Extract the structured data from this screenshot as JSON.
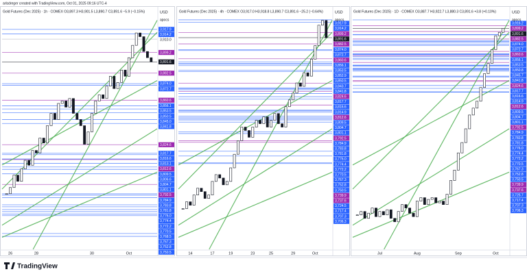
{
  "credit": "arlsdreger created with TradingView.com, Oct 01, 2025 09:16 UTC-4",
  "brand": "TradingView",
  "chart_data": [
    {
      "type": "candlestick",
      "title": "Gold Futures (Dec 2025) · 1h · COMEX  O3,897.3 H3,901.5 L3,890.7 C3,891.6 −5.9 (−0.15%)",
      "currency": "USD",
      "indicator": "apocs",
      "categories": [
        null,
        "26",
        null,
        null,
        null,
        null,
        null,
        null,
        "28",
        null,
        null,
        null,
        null,
        null,
        null,
        null,
        null,
        null,
        null,
        null,
        null,
        null,
        null,
        "30",
        null,
        null,
        null,
        null,
        null,
        null,
        null,
        null,
        null,
        "Oct",
        null,
        null,
        null,
        null,
        null,
        null
      ],
      "values": [
        3785,
        3790,
        3800,
        3795,
        3805,
        3812,
        3808,
        3820,
        3818,
        3830,
        3826,
        3840,
        3850,
        3845,
        3858,
        3860,
        3855,
        3862,
        3850,
        3845,
        3840,
        3825,
        3835,
        3850,
        3860,
        3865,
        3862,
        3872,
        3880,
        3870,
        3875,
        3885,
        3880,
        3895,
        3905,
        3915,
        3912,
        3900,
        3895,
        3891.6
      ],
      "up_color": "#089981",
      "down_color": "#131722",
      "ylim": [
        3740,
        3935
      ],
      "levels": [
        {
          "value": 3917.9,
          "label": "3,917.9",
          "color": "#2962ff"
        },
        {
          "value": 3914.2,
          "label": "3,914.2",
          "color": "#2962ff"
        },
        {
          "value": 3910.0,
          "label": "3,910.0",
          "color": "#ffffff"
        },
        {
          "value": 3899.2,
          "label": "3,899.2",
          "color": "#9c27b0"
        },
        {
          "value": 3891.6,
          "label": "3,891.6",
          "color": "#131722"
        },
        {
          "value": 3882.5,
          "label": "3,882.5",
          "color": "#9c27b0"
        },
        {
          "value": 3874.0,
          "label": "3,874.0",
          "color": "#2962ff"
        },
        {
          "value": 3872.7,
          "label": "3,872.7",
          "color": "#2962ff"
        },
        {
          "value": 3860.6,
          "label": "3,860.6",
          "color": "#9c27b0"
        },
        {
          "value": 3856.1,
          "label": "3,856.1",
          "color": "#2962ff"
        },
        {
          "value": 3853.5,
          "label": "3,853.5",
          "color": "#2962ff"
        },
        {
          "value": 3850.5,
          "label": "3,850.5",
          "color": "#2962ff"
        },
        {
          "value": 3845.0,
          "label": "3,845.0",
          "color": "#2962ff"
        },
        {
          "value": 3841.8,
          "label": "3,841.8",
          "color": "#2962ff"
        },
        {
          "value": 3824.6,
          "label": "3,824.6",
          "color": "#9c27b0"
        },
        {
          "value": 3817.7,
          "label": "3,817.7",
          "color": "#2962ff"
        },
        {
          "value": 3816.6,
          "label": "3,816.6",
          "color": "#2962ff"
        },
        {
          "value": 3813.1,
          "label": "3,813.1",
          "color": "#2962ff"
        },
        {
          "value": 3812.6,
          "label": "3,812.6",
          "color": "#9c27b0"
        },
        {
          "value": 3809.5,
          "label": "3,809.5",
          "color": "#2962ff"
        },
        {
          "value": 3806.6,
          "label": "3,806.6",
          "color": "#2962ff"
        },
        {
          "value": 3804.7,
          "label": "3,804.7",
          "color": "#2962ff"
        },
        {
          "value": 3801.1,
          "label": "3,801.1",
          "color": "#2962ff"
        },
        {
          "value": 3792.5,
          "label": "3,792.5",
          "color": "#9c27b0"
        },
        {
          "value": 3784.9,
          "label": "3,784.9",
          "color": "#2962ff"
        },
        {
          "value": 3783.8,
          "label": "3,783.8",
          "color": "#2962ff"
        },
        {
          "value": 3781.8,
          "label": "3,781.8",
          "color": "#2962ff"
        },
        {
          "value": 3776.0,
          "label": "3,776.0",
          "color": "#2962ff"
        },
        {
          "value": 3774.4,
          "label": "3,774.4",
          "color": "#2962ff"
        },
        {
          "value": 3772.2,
          "label": "3,772.2",
          "color": "#2962ff"
        },
        {
          "value": 3770.5,
          "label": "3,770.5",
          "color": "#2962ff"
        },
        {
          "value": 3768.5,
          "label": "3,768.5",
          "color": "#2962ff"
        },
        {
          "value": 3767.3,
          "label": "3,767.3",
          "color": "#2962ff"
        },
        {
          "value": 3752.8,
          "label": "3,752.8",
          "color": "#2962ff"
        },
        {
          "value": 3750.5,
          "label": "3,750.5",
          "color": "#2962ff"
        }
      ]
    },
    {
      "type": "candlestick",
      "title": "Gold Futures (Dec 2025) · 4h · COMEX  O3,917.0 H3,918.8 L3,890.7 C3,891.6 −25.2 (−0.64%)",
      "currency": "USD",
      "indicator": "apocs",
      "categories": [
        null,
        null,
        "14",
        null,
        null,
        null,
        null,
        null,
        "17",
        null,
        null,
        null,
        null,
        "19",
        null,
        null,
        null,
        null,
        null,
        "23",
        null,
        null,
        null,
        null,
        "25",
        null,
        null,
        null,
        null,
        null,
        "29",
        null,
        null,
        null,
        null,
        null,
        "Oct",
        null,
        null,
        null
      ],
      "values": [
        3640,
        3650,
        3645,
        3660,
        3670,
        3665,
        3655,
        3660,
        3680,
        3690,
        3685,
        3675,
        3680,
        3700,
        3720,
        3740,
        3760,
        3755,
        3745,
        3760,
        3770,
        3765,
        3775,
        3760,
        3770,
        3780,
        3765,
        3760,
        3790,
        3800,
        3810,
        3825,
        3820,
        3840,
        3835,
        3860,
        3880,
        3910,
        3917,
        3891.6
      ],
      "up_color": "#089981",
      "down_color": "#131722",
      "ylim": [
        3580,
        3935
      ],
      "levels": [
        {
          "value": 3917.9,
          "label": "3,917.9",
          "color": "#2962ff"
        },
        {
          "value": 3914.2,
          "label": "3,914.2",
          "color": "#2962ff"
        },
        {
          "value": 3899.2,
          "label": "3,899.2",
          "color": "#9c27b0"
        },
        {
          "value": 3891.6,
          "label": "3,891.6",
          "color": "#131722"
        },
        {
          "value": 3882.5,
          "label": "3,882.5",
          "color": "#9c27b0"
        },
        {
          "value": 3874.0,
          "label": "3,874.0",
          "color": "#2962ff"
        },
        {
          "value": 3872.7,
          "label": "3,872.7",
          "color": "#2962ff"
        },
        {
          "value": 3860.6,
          "label": "3,860.6",
          "color": "#9c27b0"
        },
        {
          "value": 3856.1,
          "label": "3,856.1",
          "color": "#2962ff"
        },
        {
          "value": 3853.5,
          "label": "3,853.5",
          "color": "#2962ff"
        },
        {
          "value": 3852.9,
          "label": "3,852.9",
          "color": "#2962ff"
        },
        {
          "value": 3850.5,
          "label": "3,850.5",
          "color": "#2962ff"
        },
        {
          "value": 3843.7,
          "label": "3,843.7",
          "color": "#2962ff"
        },
        {
          "value": 3841.8,
          "label": "3,841.8",
          "color": "#2962ff"
        },
        {
          "value": 3824.6,
          "label": "3,824.6",
          "color": "#9c27b0"
        },
        {
          "value": 3817.7,
          "label": "3,817.7",
          "color": "#2962ff"
        },
        {
          "value": 3816.6,
          "label": "3,816.6",
          "color": "#2962ff"
        },
        {
          "value": 3814.9,
          "label": "3,814.9",
          "color": "#2962ff"
        },
        {
          "value": 3812.6,
          "label": "3,812.6",
          "color": "#9c27b0"
        },
        {
          "value": 3809.5,
          "label": "3,809.5",
          "color": "#2962ff"
        },
        {
          "value": 3804.7,
          "label": "3,804.7",
          "color": "#2962ff"
        },
        {
          "value": 3801.1,
          "label": "3,801.1",
          "color": "#2962ff"
        },
        {
          "value": 3792.5,
          "label": "3,792.5",
          "color": "#9c27b0"
        },
        {
          "value": 3784.9,
          "label": "3,784.9",
          "color": "#2962ff"
        },
        {
          "value": 3783.8,
          "label": "3,783.8",
          "color": "#2962ff"
        },
        {
          "value": 3781.8,
          "label": "3,781.8",
          "color": "#2962ff"
        },
        {
          "value": 3776.0,
          "label": "3,776.0",
          "color": "#2962ff"
        },
        {
          "value": 3774.4,
          "label": "3,774.4",
          "color": "#2962ff"
        },
        {
          "value": 3772.2,
          "label": "3,772.2",
          "color": "#2962ff"
        },
        {
          "value": 3770.5,
          "label": "3,770.5",
          "color": "#2962ff"
        },
        {
          "value": 3767.3,
          "label": "3,767.3",
          "color": "#2962ff"
        },
        {
          "value": 3752.8,
          "label": "3,752.8",
          "color": "#2962ff"
        },
        {
          "value": 3750.5,
          "label": "3,750.5",
          "color": "#2962ff"
        },
        {
          "value": 3739.9,
          "label": "3,739.9",
          "color": "#9c27b0"
        },
        {
          "value": 3737.6,
          "label": "3,737.6",
          "color": "#9c27b0"
        },
        {
          "value": 3724.5,
          "label": "3,724.5",
          "color": "#2962ff"
        },
        {
          "value": 3717.4,
          "label": "3,717.4",
          "color": "#2962ff"
        },
        {
          "value": 3707.3,
          "label": "3,707.3",
          "color": "#2962ff"
        },
        {
          "value": 3706.3,
          "label": "3,706.3",
          "color": "#2962ff"
        }
      ]
    },
    {
      "type": "candlestick",
      "title": "Gold Futures (Dec 2025) · 1D · COMEX  O3,887.7 H3,922.7 L3,880.3 C3,891.6 +3.8 (+0.10%)",
      "currency": "USD",
      "indicator": "apocs",
      "categories": [
        null,
        null,
        null,
        null,
        null,
        null,
        "Jul",
        null,
        null,
        null,
        null,
        null,
        null,
        null,
        null,
        null,
        "Aug",
        null,
        null,
        null,
        null,
        null,
        null,
        null,
        null,
        null,
        null,
        "Sep",
        null,
        null,
        null,
        null,
        null,
        null,
        null,
        null,
        null,
        "Oct",
        null,
        null
      ],
      "values": [
        3350,
        3360,
        3340,
        3355,
        3370,
        3345,
        3360,
        3350,
        3365,
        3340,
        3330,
        3360,
        3380,
        3370,
        3355,
        3345,
        3390,
        3400,
        3380,
        3395,
        3400,
        3385,
        3390,
        3380,
        3410,
        3450,
        3480,
        3530,
        3560,
        3600,
        3640,
        3660,
        3680,
        3720,
        3760,
        3790,
        3830,
        3870,
        3880,
        3891.6
      ],
      "up_color": "#089981",
      "down_color": "#131722",
      "ylim": [
        3250,
        3950
      ],
      "levels": [
        {
          "value": 3916.2,
          "label": "3,916.2",
          "color": "#2962ff"
        },
        {
          "value": 3899.2,
          "label": "3,899.2",
          "color": "#9c27b0"
        },
        {
          "value": 3891.6,
          "label": "3,891.6",
          "color": "#131722"
        },
        {
          "value": 3882.5,
          "label": "3,882.5",
          "color": "#9c27b0"
        },
        {
          "value": 3874.0,
          "label": "3,874.0",
          "color": "#2962ff"
        },
        {
          "value": 3872.7,
          "label": "3,872.7",
          "color": "#2962ff"
        },
        {
          "value": 3860.6,
          "label": "3,860.6",
          "color": "#9c27b0"
        },
        {
          "value": 3856.1,
          "label": "3,856.1",
          "color": "#2962ff"
        },
        {
          "value": 3853.5,
          "label": "3,853.5",
          "color": "#2962ff"
        },
        {
          "value": 3850.8,
          "label": "3,850.8",
          "color": "#2962ff"
        },
        {
          "value": 3845.7,
          "label": "3,845.7",
          "color": "#2962ff"
        },
        {
          "value": 3841.8,
          "label": "3,841.8",
          "color": "#2962ff"
        },
        {
          "value": 3824.6,
          "label": "3,824.6",
          "color": "#9c27b0"
        },
        {
          "value": 3817.7,
          "label": "3,817.7",
          "color": "#2962ff"
        },
        {
          "value": 3816.6,
          "label": "3,816.6",
          "color": "#2962ff"
        },
        {
          "value": 3814.9,
          "label": "3,814.9",
          "color": "#2962ff"
        },
        {
          "value": 3812.6,
          "label": "3,812.6",
          "color": "#9c27b0"
        },
        {
          "value": 3809.5,
          "label": "3,809.5",
          "color": "#2962ff"
        },
        {
          "value": 3804.7,
          "label": "3,804.7",
          "color": "#2962ff"
        },
        {
          "value": 3801.1,
          "label": "3,801.1",
          "color": "#2962ff"
        },
        {
          "value": 3792.5,
          "label": "3,792.5",
          "color": "#9c27b0"
        },
        {
          "value": 3784.9,
          "label": "3,784.9",
          "color": "#2962ff"
        },
        {
          "value": 3783.8,
          "label": "3,783.8",
          "color": "#2962ff"
        },
        {
          "value": 3781.8,
          "label": "3,781.8",
          "color": "#2962ff"
        },
        {
          "value": 3776.0,
          "label": "3,776.0",
          "color": "#2962ff"
        },
        {
          "value": 3774.4,
          "label": "3,774.4",
          "color": "#2962ff"
        },
        {
          "value": 3772.2,
          "label": "3,772.2",
          "color": "#2962ff"
        },
        {
          "value": 3770.5,
          "label": "3,770.5",
          "color": "#2962ff"
        },
        {
          "value": 3767.3,
          "label": "3,767.3",
          "color": "#2962ff"
        },
        {
          "value": 3752.8,
          "label": "3,752.8",
          "color": "#2962ff"
        },
        {
          "value": 3750.5,
          "label": "3,750.5",
          "color": "#2962ff"
        },
        {
          "value": 3739.9,
          "label": "3,739.9",
          "color": "#9c27b0"
        },
        {
          "value": 3737.6,
          "label": "3,737.6",
          "color": "#9c27b0"
        },
        {
          "value": 3725.7,
          "label": "3,725.7",
          "color": "#2962ff"
        },
        {
          "value": 3717.4,
          "label": "3,717.4",
          "color": "#2962ff"
        },
        {
          "value": 3707.3,
          "label": "3,707.3",
          "color": "#2962ff"
        },
        {
          "value": 3706.3,
          "label": "3,706.3",
          "color": "#2962ff"
        }
      ]
    }
  ]
}
